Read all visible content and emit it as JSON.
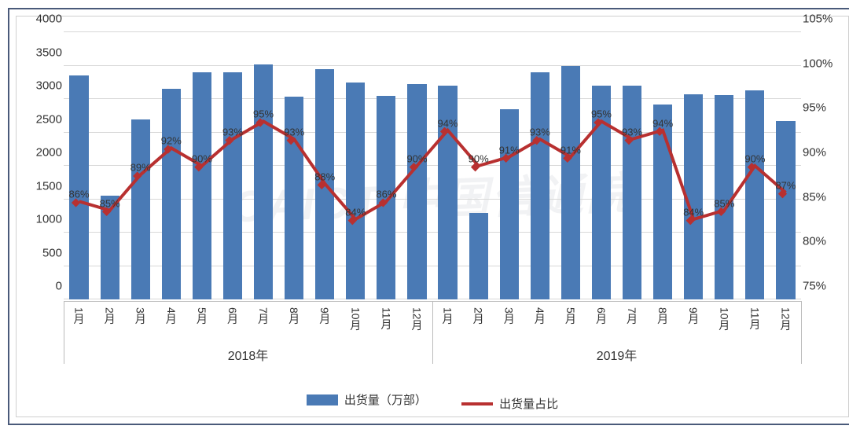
{
  "chart": {
    "type": "combo-bar-line",
    "background_color": "#ffffff",
    "border_color": "#4a5a7a",
    "grid_color": "#d8d8d8",
    "axis_text_color": "#333333",
    "left_axis": {
      "min": 0,
      "max": 4000,
      "step": 500,
      "ticks": [
        "0",
        "500",
        "1000",
        "1500",
        "2000",
        "2500",
        "3000",
        "3500",
        "4000"
      ]
    },
    "right_axis": {
      "min": 75,
      "max": 105,
      "step": 5,
      "ticks": [
        "75%",
        "80%",
        "85%",
        "90%",
        "95%",
        "100%",
        "105%"
      ]
    },
    "groups": [
      {
        "label": "2018年",
        "months": [
          "1月",
          "2月",
          "3月",
          "4月",
          "5月",
          "6月",
          "7月",
          "8月",
          "9月",
          "10月",
          "11月",
          "12月"
        ]
      },
      {
        "label": "2019年",
        "months": [
          "1月",
          "2月",
          "3月",
          "4月",
          "5月",
          "6月",
          "7月",
          "8月",
          "9月",
          "10月",
          "11月",
          "12月"
        ]
      }
    ],
    "bar_series": {
      "name": "出货量（万部）",
      "color": "#4a7ab5",
      "bar_width_ratio": 0.62,
      "values": [
        3350,
        1550,
        2700,
        3150,
        3400,
        3400,
        3520,
        3030,
        3450,
        3250,
        3050,
        3220,
        3200,
        1300,
        2850,
        3400,
        3500,
        3200,
        3200,
        2920,
        3070,
        3060,
        3130,
        2670
      ]
    },
    "line_series": {
      "name": "出货量占比",
      "color": "#b83030",
      "line_width": 4,
      "marker": "diamond",
      "marker_size": 8,
      "values_pct": [
        86,
        85,
        89,
        92,
        90,
        93,
        95,
        93,
        88,
        84,
        86,
        90,
        94,
        90,
        91,
        93,
        91,
        95,
        93,
        94,
        84,
        85,
        90,
        87
      ],
      "labels": [
        "86%",
        "85%",
        "89%",
        "92%",
        "90%",
        "93%",
        "95%",
        "93%",
        "88%",
        "84%",
        "86%",
        "90%",
        "94%",
        "90%",
        "91%",
        "93%",
        "91%",
        "95%",
        "93%",
        "94%",
        "84%",
        "85%",
        "90%",
        "87%"
      ]
    },
    "label_fontsize": 13,
    "tick_fontsize": 15,
    "year_fontsize": 16,
    "watermark_text": "CAICT 中国信通院"
  },
  "legend": {
    "bar_label": "出货量（万部）",
    "line_label": "出货量占比"
  }
}
